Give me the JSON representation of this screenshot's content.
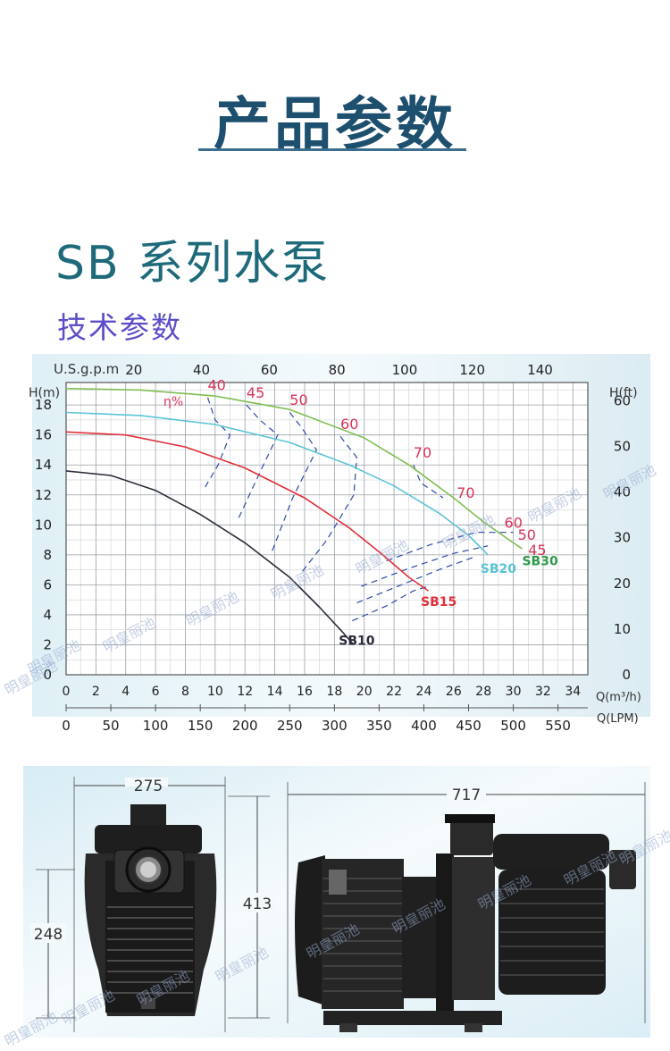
{
  "header": {
    "page_title": "产品参数",
    "series_heading": "SB 系列水泵",
    "subheading": "技术参数"
  },
  "chart_data": {
    "type": "line",
    "title": "",
    "top_axis_label": "U.S.g.p.m",
    "top_axis_ticks": [
      20,
      40,
      60,
      80,
      100,
      120,
      140
    ],
    "left_axis_label": "H(m)",
    "left_axis_ticks": [
      0,
      2,
      4,
      6,
      8,
      10,
      12,
      14,
      16,
      18
    ],
    "right_axis_label": "H(ft)",
    "right_axis_ticks": [
      0,
      10,
      20,
      30,
      40,
      50,
      60
    ],
    "bottom_axis_label": "Q(m³/h)",
    "bottom_axis_ticks": [
      0,
      2,
      4,
      6,
      8,
      10,
      12,
      14,
      16,
      18,
      20,
      22,
      24,
      26,
      28,
      30,
      32,
      34
    ],
    "lpm_axis_label": "Q(LPM)",
    "lpm_axis_ticks": [
      0,
      50,
      100,
      150,
      200,
      250,
      300,
      350,
      400,
      450,
      500,
      550
    ],
    "xlim": [
      0,
      35
    ],
    "ylim": [
      0,
      19.5
    ],
    "grid": true,
    "efficiency_symbol": "η%",
    "series": [
      {
        "name": "SB10",
        "color": "#2b2b3a",
        "x": [
          0,
          3,
          6,
          9,
          12,
          15,
          17,
          18.5,
          19.3
        ],
        "y": [
          13.6,
          13.3,
          12.3,
          10.7,
          8.8,
          6.5,
          4.5,
          2.9,
          2.0
        ]
      },
      {
        "name": "SB15",
        "color": "#e0303a",
        "x": [
          0,
          4,
          8,
          12,
          16,
          19,
          21,
          23,
          24.3
        ],
        "y": [
          16.2,
          16.0,
          15.2,
          13.8,
          11.8,
          9.8,
          8.2,
          6.5,
          5.6
        ]
      },
      {
        "name": "SB20",
        "color": "#5bc4d6",
        "x": [
          0,
          5,
          10,
          15,
          19,
          22,
          25,
          27,
          28.3
        ],
        "y": [
          17.5,
          17.3,
          16.7,
          15.5,
          14.0,
          12.6,
          10.8,
          9.3,
          8.0
        ]
      },
      {
        "name": "SB30",
        "color": "#7fbe50",
        "x": [
          0,
          5,
          10,
          15,
          20,
          23,
          26,
          28,
          30,
          30.6
        ],
        "y": [
          19.1,
          19.0,
          18.6,
          17.7,
          15.8,
          14.0,
          11.8,
          10.2,
          8.8,
          8.4
        ]
      }
    ],
    "efficiency_labels": [
      {
        "text": "40",
        "x": 9.5,
        "y": 19.0,
        "color": "#d8345a"
      },
      {
        "text": "45",
        "x": 12.1,
        "y": 18.5,
        "color": "#d8345a"
      },
      {
        "text": "50",
        "x": 15.0,
        "y": 18.0,
        "color": "#d8345a"
      },
      {
        "text": "60",
        "x": 18.4,
        "y": 16.4,
        "color": "#d8345a"
      },
      {
        "text": "70",
        "x": 23.3,
        "y": 14.5,
        "color": "#d8345a"
      },
      {
        "text": "70",
        "x": 26.2,
        "y": 11.8,
        "color": "#d8345a"
      },
      {
        "text": "60",
        "x": 29.4,
        "y": 9.8,
        "color": "#d8345a"
      },
      {
        "text": "50",
        "x": 30.3,
        "y": 9.0,
        "color": "#d8345a"
      },
      {
        "text": "45",
        "x": 31.0,
        "y": 8.0,
        "color": "#d8345a"
      }
    ],
    "series_labels": [
      {
        "text": "SB10",
        "x": 19.5,
        "y": 2.0,
        "color": "#2b2b3a"
      },
      {
        "text": "SB15",
        "x": 25.0,
        "y": 4.6,
        "color": "#e0303a"
      },
      {
        "text": "SB20",
        "x": 29.0,
        "y": 6.8,
        "color": "#5bc4d6"
      },
      {
        "text": "SB30",
        "x": 31.8,
        "y": 7.3,
        "color": "#2e9a4a"
      }
    ]
  },
  "dimensions": {
    "width_front": "275",
    "total_height": "413",
    "axis_height": "248",
    "length": "717"
  },
  "watermark": "明皇丽池"
}
